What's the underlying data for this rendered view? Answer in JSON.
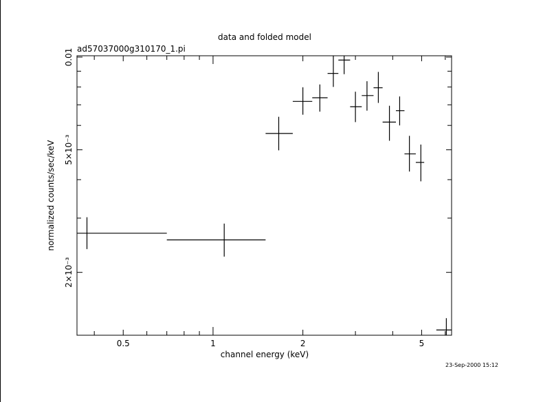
{
  "chart_data": {
    "type": "scatter",
    "title": "data and folded model",
    "subtitle": "ad57037000g310170_1.pi",
    "xlabel": "channel energy (keV)",
    "ylabel": "normalized counts/sec/keV",
    "x_scale": "log",
    "y_scale": "log",
    "xlim": [
      0.35,
      6.3
    ],
    "ylim": [
      0.00125,
      0.0101
    ],
    "x_ticks": [
      {
        "value": 0.5,
        "label": "0.5"
      },
      {
        "value": 1,
        "label": "1"
      },
      {
        "value": 2,
        "label": "2"
      },
      {
        "value": 5,
        "label": "5"
      }
    ],
    "y_ticks": [
      {
        "value": 0.002,
        "label": "2×10⁻³"
      },
      {
        "value": 0.005,
        "label": "5×10⁻³"
      },
      {
        "value": 0.01,
        "label": "0.01"
      }
    ],
    "series": [
      {
        "points": [
          {
            "x": 0.378,
            "xlo": 0.35,
            "xhi": 0.7,
            "y": 0.00268,
            "ylo": 0.00238,
            "yhi": 0.00302
          },
          {
            "x": 1.09,
            "xlo": 0.7,
            "xhi": 1.5,
            "y": 0.00255,
            "ylo": 0.00225,
            "yhi": 0.00288
          },
          {
            "x": 1.66,
            "xlo": 1.5,
            "xhi": 1.85,
            "y": 0.00565,
            "ylo": 0.00498,
            "yhi": 0.0064
          },
          {
            "x": 2.0,
            "xlo": 1.85,
            "xhi": 2.15,
            "y": 0.00718,
            "ylo": 0.0065,
            "yhi": 0.00798
          },
          {
            "x": 2.28,
            "xlo": 2.15,
            "xhi": 2.42,
            "y": 0.00738,
            "ylo": 0.00665,
            "yhi": 0.00815
          },
          {
            "x": 2.53,
            "xlo": 2.42,
            "xhi": 2.63,
            "y": 0.00885,
            "ylo": 0.008,
            "yhi": 0.0101
          },
          {
            "x": 2.75,
            "xlo": 2.63,
            "xhi": 2.88,
            "y": 0.00978,
            "ylo": 0.0088,
            "yhi": 0.0101
          },
          {
            "x": 3.0,
            "xlo": 2.88,
            "xhi": 3.15,
            "y": 0.0069,
            "ylo": 0.00615,
            "yhi": 0.00772
          },
          {
            "x": 3.28,
            "xlo": 3.15,
            "xhi": 3.45,
            "y": 0.0075,
            "ylo": 0.0067,
            "yhi": 0.00835
          },
          {
            "x": 3.58,
            "xlo": 3.45,
            "xhi": 3.7,
            "y": 0.00795,
            "ylo": 0.0071,
            "yhi": 0.00895
          },
          {
            "x": 3.9,
            "xlo": 3.7,
            "xhi": 4.1,
            "y": 0.00615,
            "ylo": 0.00535,
            "yhi": 0.00695
          },
          {
            "x": 4.22,
            "xlo": 4.1,
            "xhi": 4.38,
            "y": 0.0067,
            "ylo": 0.006,
            "yhi": 0.00745
          },
          {
            "x": 4.55,
            "xlo": 4.38,
            "xhi": 4.78,
            "y": 0.00485,
            "ylo": 0.00425,
            "yhi": 0.00555
          },
          {
            "x": 4.97,
            "xlo": 4.78,
            "xhi": 5.1,
            "y": 0.00455,
            "ylo": 0.00395,
            "yhi": 0.0052
          },
          {
            "x": 6.05,
            "xlo": 5.6,
            "xhi": 6.3,
            "y": 0.0013,
            "ylo": 0.00125,
            "yhi": 0.00142
          }
        ]
      }
    ],
    "grid": false,
    "legend": "none"
  },
  "timestamp": "23-Sep-2000 15:12"
}
